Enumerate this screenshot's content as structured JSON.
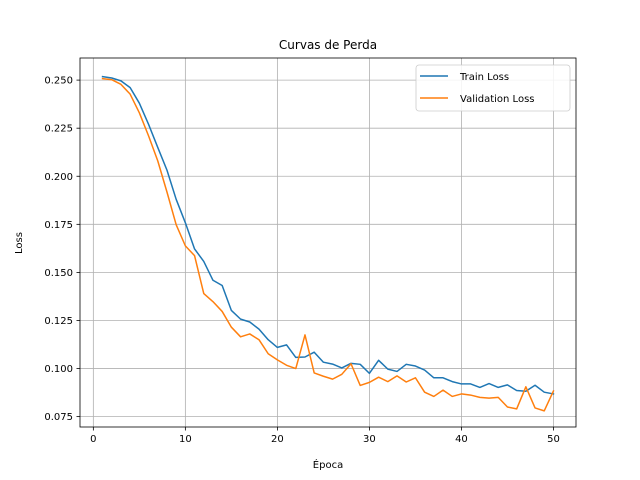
{
  "chart_data": {
    "type": "line",
    "title": "Curvas de Perda",
    "xlabel": "Época",
    "ylabel": "Loss",
    "xlim": [
      -1.45,
      52.45
    ],
    "ylim": [
      0.0696,
      0.2615
    ],
    "xticks": [
      0,
      10,
      20,
      30,
      40,
      50
    ],
    "yticks": [
      0.075,
      0.1,
      0.125,
      0.15,
      0.175,
      0.2,
      0.225,
      0.25
    ],
    "xtick_labels": [
      "0",
      "10",
      "20",
      "30",
      "40",
      "50"
    ],
    "ytick_labels": [
      "0.075",
      "0.100",
      "0.125",
      "0.150",
      "0.175",
      "0.200",
      "0.225",
      "0.250"
    ],
    "grid": true,
    "legend_position": "top-right",
    "x": [
      1,
      2,
      3,
      4,
      5,
      6,
      7,
      8,
      9,
      10,
      11,
      12,
      13,
      14,
      15,
      16,
      17,
      18,
      19,
      20,
      21,
      22,
      23,
      24,
      25,
      26,
      27,
      28,
      29,
      30,
      31,
      32,
      33,
      34,
      35,
      36,
      37,
      38,
      39,
      40,
      41,
      42,
      43,
      44,
      45,
      46,
      47,
      48,
      49,
      50
    ],
    "series": [
      {
        "name": "Train Loss",
        "color": "#1f77b4",
        "values": [
          0.2518,
          0.2511,
          0.2496,
          0.2461,
          0.238,
          0.227,
          0.215,
          0.2032,
          0.188,
          0.1758,
          0.1622,
          0.1557,
          0.1459,
          0.1432,
          0.1302,
          0.1257,
          0.1242,
          0.1205,
          0.115,
          0.111,
          0.1123,
          0.1058,
          0.106,
          0.1085,
          0.1033,
          0.1023,
          0.1003,
          0.1027,
          0.1022,
          0.0975,
          0.1043,
          0.0997,
          0.0985,
          0.1022,
          0.1013,
          0.0992,
          0.0952,
          0.0952,
          0.0932,
          0.092,
          0.092,
          0.0902,
          0.0922,
          0.0902,
          0.0915,
          0.0886,
          0.0882,
          0.0913,
          0.0877,
          0.0868
        ]
      },
      {
        "name": "Validation Loss",
        "color": "#ff7f0e",
        "values": [
          0.2508,
          0.2502,
          0.2478,
          0.2427,
          0.233,
          0.221,
          0.208,
          0.1918,
          0.1748,
          0.1638,
          0.1587,
          0.139,
          0.1348,
          0.1297,
          0.1215,
          0.1165,
          0.118,
          0.115,
          0.1077,
          0.1045,
          0.1017,
          0.1,
          0.1175,
          0.0977,
          0.096,
          0.0945,
          0.097,
          0.1025,
          0.0912,
          0.0928,
          0.0955,
          0.0932,
          0.0962,
          0.093,
          0.0952,
          0.0877,
          0.0855,
          0.0888,
          0.0855,
          0.0868,
          0.0862,
          0.085,
          0.0846,
          0.085,
          0.08,
          0.079,
          0.0905,
          0.0795,
          0.078,
          0.0883
        ]
      }
    ]
  }
}
